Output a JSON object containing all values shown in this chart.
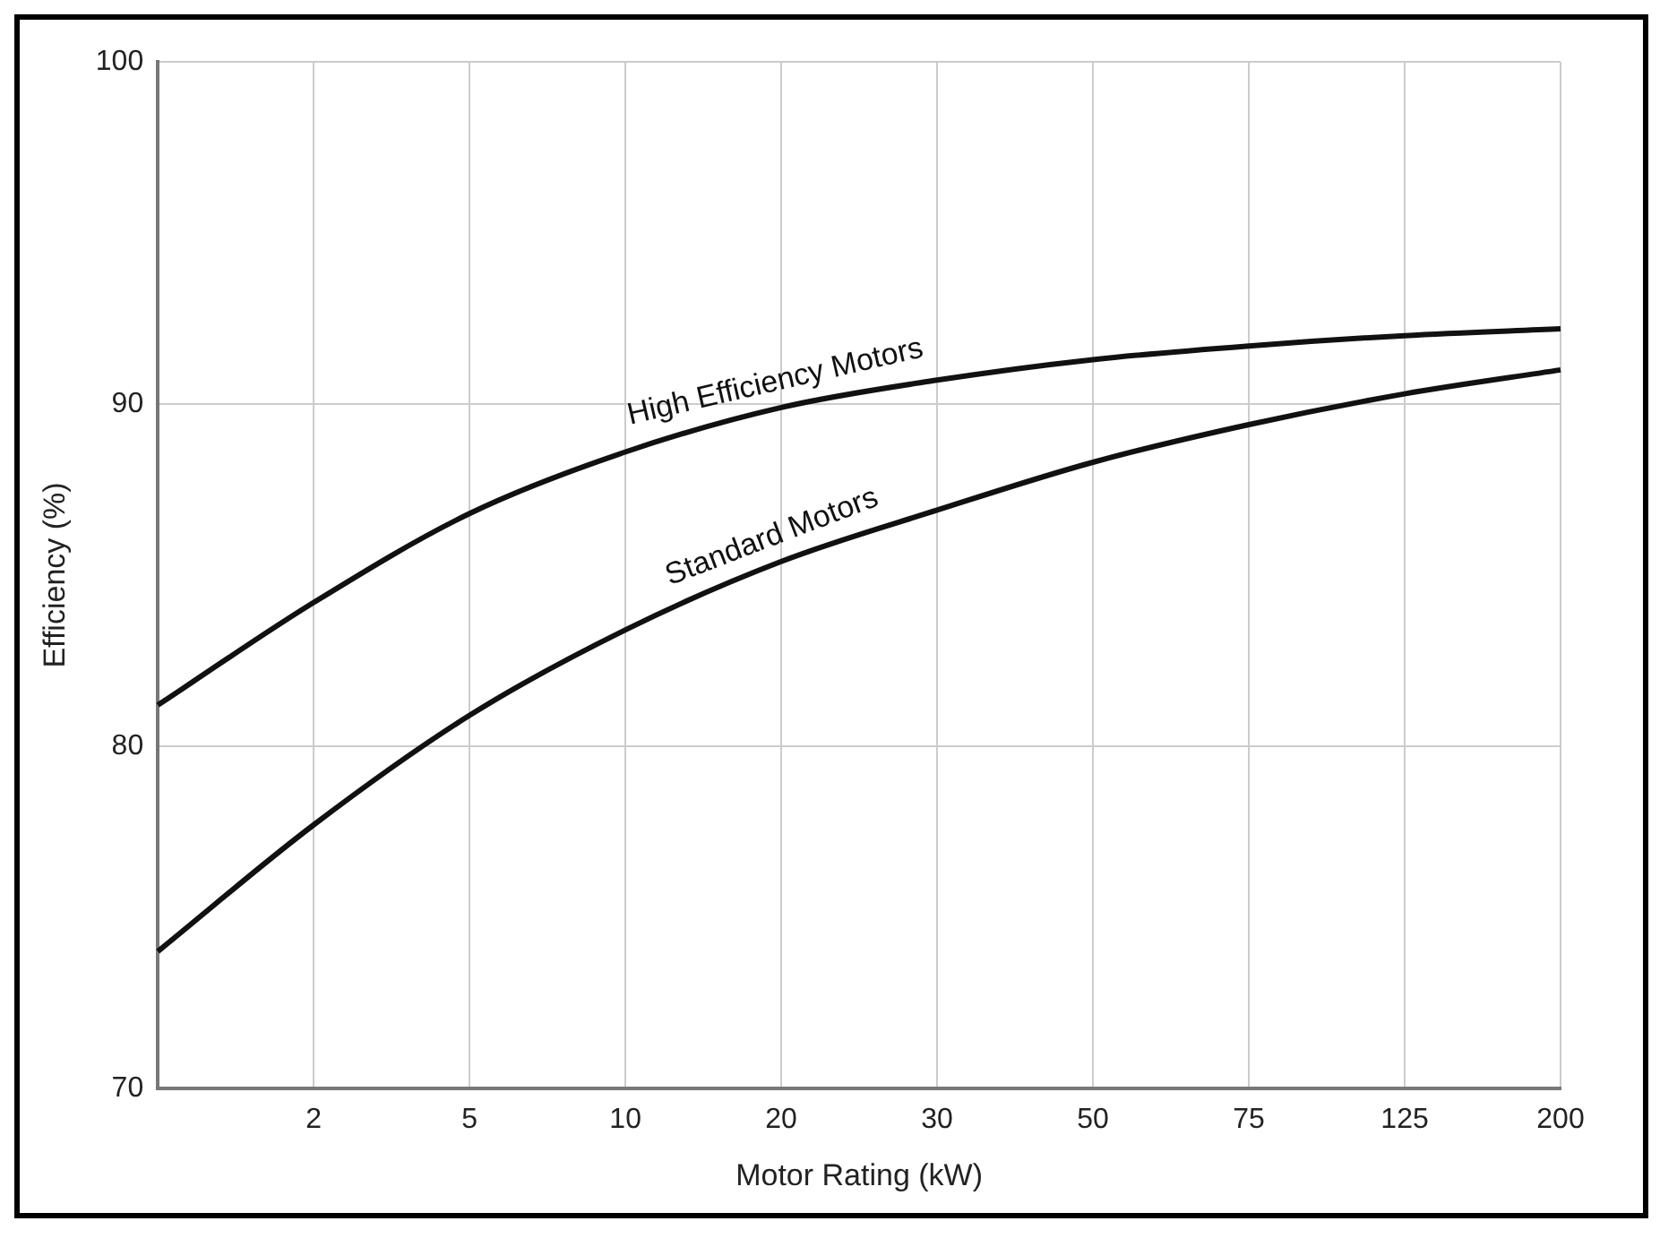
{
  "chart_data": {
    "type": "line",
    "xlabel": "Motor Rating (kW)",
    "ylabel": "Efficiency (%)",
    "categories": [
      null,
      "2",
      "5",
      "10",
      "20",
      "30",
      "50",
      "75",
      "125",
      "200"
    ],
    "series": [
      {
        "name": "High Efficiency Motors",
        "color": "#111111",
        "values": [
          81.2,
          84.2,
          86.8,
          88.6,
          89.9,
          90.7,
          91.3,
          91.7,
          92.0,
          92.2
        ]
      },
      {
        "name": "Standard Motors",
        "color": "#111111",
        "values": [
          74.0,
          77.7,
          80.9,
          83.4,
          85.4,
          86.9,
          88.3,
          89.4,
          90.3,
          91.0
        ]
      }
    ],
    "ylim": [
      70,
      100
    ],
    "yticks": [
      70,
      80,
      90,
      100
    ],
    "grid": true,
    "legend": false,
    "marker": "none",
    "line_style": "solid"
  }
}
